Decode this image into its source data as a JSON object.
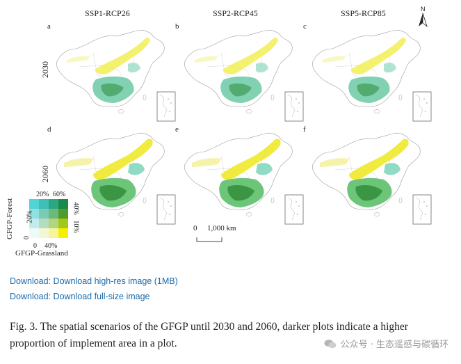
{
  "figure": {
    "columns": [
      "SSP1-RCP26",
      "SSP2-RCP45",
      "SSP5-RCP85"
    ],
    "rows": [
      "2030",
      "2060"
    ],
    "panels": [
      "a",
      "b",
      "c",
      "d",
      "e",
      "f"
    ],
    "north_label": "N",
    "scale": {
      "zero": "0",
      "distance": "1,000 km"
    },
    "legend": {
      "y_axis_label": "GFGP-Forest",
      "x_axis_label": "GFGP-Grassland",
      "top_labels": [
        "20%",
        "60%"
      ],
      "left_labels": [
        "0",
        "20%"
      ],
      "right_labels": [
        "10%",
        "40%"
      ],
      "bottom_labels": [
        "0",
        "40%"
      ],
      "colors": [
        [
          "#4fd3d6",
          "#3fbfb6",
          "#2aa883",
          "#1a8a4a"
        ],
        [
          "#8fe0e0",
          "#79cbb6",
          "#6cb97a",
          "#4f9c2a"
        ],
        [
          "#c2ecec",
          "#b5dcc0",
          "#b2d67c",
          "#a1c81a"
        ],
        [
          "#eefafa",
          "#f3f7d2",
          "#f6f59a",
          "#f6f000"
        ]
      ]
    }
  },
  "links": {
    "high_res": "Download: Download high-res image (1MB)",
    "full_size": "Download: Download full-size image"
  },
  "caption": "Fig. 3. The spatial scenarios of the GFGP until 2030 and 2060, darker plots indicate a higher proportion of implement area in a plot.",
  "watermark": "公众号 · 生态遥感与碳循环"
}
